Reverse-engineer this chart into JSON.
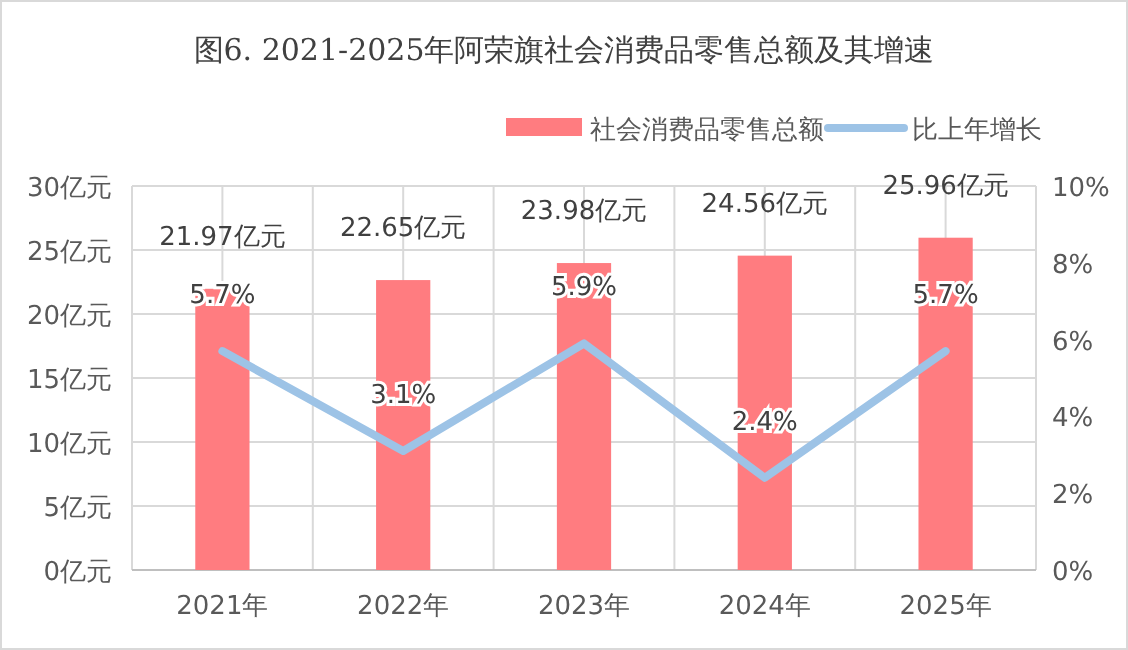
{
  "chart_data": {
    "type": "bar",
    "title": "图6. 2021-2025年阿荣旗社会消费品零售总额及其增速",
    "categories": [
      "2021年",
      "2022年",
      "2023年",
      "2024年",
      "2025年"
    ],
    "series": [
      {
        "name": "社会消费品零售总额",
        "color": "#ff7c80",
        "values": [
          21.97,
          22.65,
          23.98,
          24.56,
          25.96
        ],
        "value_labels": [
          "21.97亿元",
          "22.65亿元",
          "23.98亿元",
          "24.56亿元",
          "25.96亿元"
        ]
      },
      {
        "name": "比上年增长",
        "type": "line",
        "axis": "y2",
        "color": "#9dc3e6",
        "values": [
          5.7,
          3.1,
          5.9,
          2.4,
          5.7
        ],
        "value_labels": [
          "5.7%",
          "3.1%",
          "5.9%",
          "2.4%",
          "5.7%"
        ]
      }
    ],
    "ylim": [
      0,
      30
    ],
    "yticks": [
      {
        "value": 0,
        "label": "0亿元"
      },
      {
        "value": 5,
        "label": "5亿元"
      },
      {
        "value": 10,
        "label": "10亿元"
      },
      {
        "value": 15,
        "label": "15亿元"
      },
      {
        "value": 20,
        "label": "20亿元"
      },
      {
        "value": 25,
        "label": "25亿元"
      },
      {
        "value": 30,
        "label": "30亿元"
      }
    ],
    "y2lim": [
      0,
      10
    ],
    "y2ticks": [
      {
        "value": 0,
        "label": "0%"
      },
      {
        "value": 2,
        "label": "2%"
      },
      {
        "value": 4,
        "label": "4%"
      },
      {
        "value": 6,
        "label": "6%"
      },
      {
        "value": 8,
        "label": "8%"
      },
      {
        "value": 10,
        "label": "10%"
      }
    ],
    "grid": true,
    "legend": "top right"
  }
}
